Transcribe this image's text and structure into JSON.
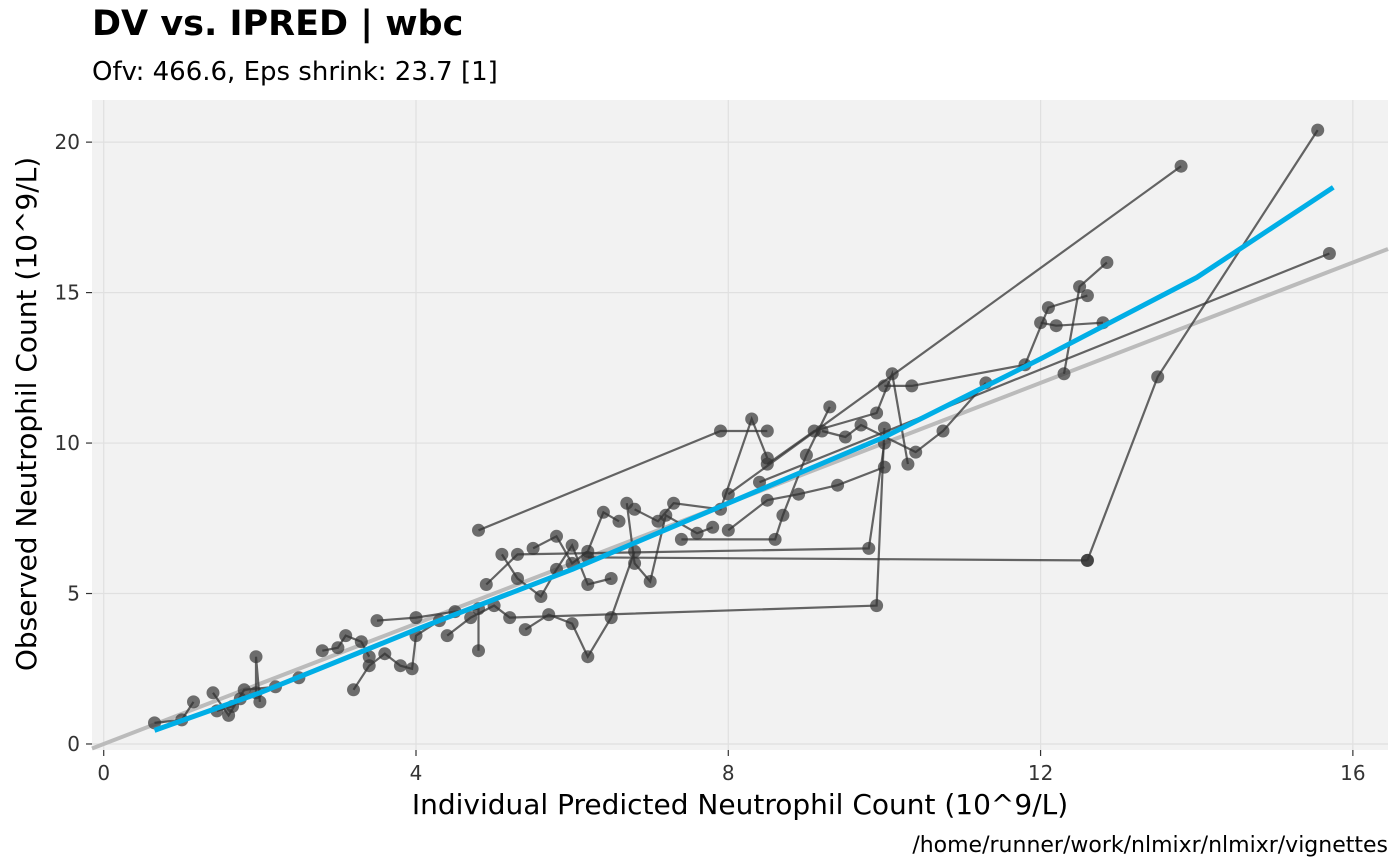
{
  "chart_data": {
    "type": "scatter",
    "title": "DV vs. IPRED | wbc",
    "subtitle": "Ofv: 466.6, Eps shrink: 23.7 [1]",
    "xlabel": "Individual Predicted Neutrophil Count (10^9/L)",
    "ylabel": "Observed Neutrophil Count (10^9/L)",
    "caption": "/home/runner/work/nlmixr/nlmixr/vignettes",
    "xlim": [
      -0.15,
      16.45
    ],
    "ylim": [
      -0.2,
      21.4
    ],
    "xticks": [
      0,
      4,
      8,
      12,
      16
    ],
    "yticks": [
      0,
      5,
      10,
      15,
      20
    ],
    "grid": true,
    "colors": {
      "panel": "#f2f2f2",
      "grid_major": "#e0e0e0",
      "points": "#333333",
      "identity_line": "#bbbbbb",
      "smooth_line": "#00aee6"
    },
    "identity_line": {
      "slope": 1,
      "intercept": 0
    },
    "smooth": [
      [
        0.65,
        0.45
      ],
      [
        2.0,
        1.7
      ],
      [
        4.0,
        3.8
      ],
      [
        6.0,
        5.8
      ],
      [
        8.0,
        8.0
      ],
      [
        10.0,
        10.2
      ],
      [
        12.0,
        12.8
      ],
      [
        14.0,
        15.5
      ],
      [
        15.75,
        18.5
      ]
    ],
    "subjects": [
      [
        [
          0.65,
          0.7
        ],
        [
          1.0,
          0.8
        ],
        [
          1.15,
          1.4
        ]
      ],
      [
        [
          1.45,
          1.1
        ],
        [
          1.65,
          1.25
        ],
        [
          1.75,
          1.5
        ],
        [
          1.95,
          1.7
        ],
        [
          1.95,
          2.9
        ],
        [
          2.0,
          1.4
        ]
      ],
      [
        [
          1.4,
          1.7
        ],
        [
          1.6,
          0.95
        ],
        [
          1.8,
          1.8
        ],
        [
          2.2,
          1.9
        ],
        [
          2.5,
          2.2
        ]
      ],
      [
        [
          2.8,
          3.1
        ],
        [
          3.0,
          3.2
        ],
        [
          3.1,
          3.6
        ],
        [
          3.3,
          3.4
        ],
        [
          3.4,
          2.9
        ]
      ],
      [
        [
          3.2,
          1.8
        ],
        [
          3.4,
          2.6
        ],
        [
          3.6,
          3.0
        ],
        [
          3.8,
          2.6
        ],
        [
          3.95,
          2.5
        ],
        [
          4.0,
          3.6
        ],
        [
          4.3,
          4.1
        ]
      ],
      [
        [
          3.5,
          4.1
        ],
        [
          4.0,
          4.2
        ],
        [
          4.5,
          4.4
        ],
        [
          4.8,
          4.5
        ],
        [
          4.8,
          3.1
        ]
      ],
      [
        [
          4.4,
          3.6
        ],
        [
          4.7,
          4.2
        ],
        [
          5.0,
          4.6
        ],
        [
          5.2,
          4.2
        ],
        [
          9.9,
          4.6
        ],
        [
          10.0,
          10.5
        ]
      ],
      [
        [
          4.8,
          7.1
        ],
        [
          7.9,
          10.4
        ],
        [
          8.5,
          10.4
        ]
      ],
      [
        [
          5.1,
          6.3
        ],
        [
          5.3,
          5.5
        ],
        [
          5.6,
          4.9
        ],
        [
          5.8,
          5.8
        ],
        [
          6.0,
          6.6
        ],
        [
          6.2,
          5.3
        ],
        [
          6.5,
          5.5
        ]
      ],
      [
        [
          5.4,
          3.8
        ],
        [
          5.7,
          4.3
        ],
        [
          6.0,
          4.0
        ],
        [
          6.2,
          2.9
        ],
        [
          6.5,
          4.2
        ],
        [
          6.8,
          6.4
        ]
      ],
      [
        [
          4.9,
          5.3
        ],
        [
          5.3,
          6.3
        ],
        [
          9.8,
          6.5
        ],
        [
          10.0,
          10.0
        ]
      ],
      [
        [
          5.5,
          6.5
        ],
        [
          5.8,
          6.9
        ],
        [
          6.0,
          6.0
        ],
        [
          6.2,
          6.4
        ],
        [
          6.4,
          7.7
        ],
        [
          6.6,
          7.4
        ]
      ],
      [
        [
          6.7,
          8.0
        ],
        [
          6.8,
          6.0
        ],
        [
          7.0,
          5.4
        ],
        [
          7.2,
          7.6
        ],
        [
          7.6,
          7.0
        ],
        [
          7.8,
          7.2
        ]
      ],
      [
        [
          6.8,
          7.8
        ],
        [
          7.1,
          7.4
        ],
        [
          7.3,
          8.0
        ],
        [
          7.9,
          7.8
        ],
        [
          8.3,
          10.8
        ],
        [
          8.5,
          9.5
        ]
      ],
      [
        [
          7.4,
          6.8
        ],
        [
          8.6,
          6.8
        ],
        [
          8.7,
          7.6
        ],
        [
          9.0,
          9.6
        ],
        [
          9.3,
          11.2
        ]
      ],
      [
        [
          8.0,
          7.1
        ],
        [
          8.5,
          8.1
        ],
        [
          8.9,
          8.3
        ],
        [
          9.4,
          8.6
        ],
        [
          10.0,
          9.2
        ]
      ],
      [
        [
          8.5,
          9.3
        ],
        [
          9.1,
          10.4
        ],
        [
          9.9,
          11.0
        ],
        [
          10.1,
          12.3
        ],
        [
          10.3,
          9.3
        ]
      ],
      [
        [
          9.2,
          10.4
        ],
        [
          9.5,
          10.2
        ],
        [
          9.7,
          10.6
        ],
        [
          10.4,
          9.7
        ],
        [
          10.75,
          10.4
        ],
        [
          11.3,
          12.0
        ]
      ],
      [
        [
          10.0,
          11.9
        ],
        [
          10.35,
          11.9
        ],
        [
          11.8,
          12.6
        ],
        [
          12.1,
          14.5
        ],
        [
          12.6,
          14.9
        ]
      ],
      [
        [
          12.0,
          14.0
        ],
        [
          12.2,
          13.9
        ],
        [
          12.8,
          14.0
        ]
      ],
      [
        [
          12.3,
          12.3
        ],
        [
          12.5,
          15.2
        ],
        [
          12.85,
          16.0
        ]
      ],
      [
        [
          12.6,
          6.1
        ],
        [
          13.5,
          12.2
        ],
        [
          15.55,
          20.4
        ]
      ],
      [
        [
          8.0,
          8.3
        ],
        [
          13.8,
          19.2
        ]
      ],
      [
        [
          8.4,
          8.7
        ],
        [
          15.7,
          16.3
        ]
      ],
      [
        [
          6.2,
          6.2
        ],
        [
          12.6,
          6.1
        ]
      ]
    ]
  }
}
